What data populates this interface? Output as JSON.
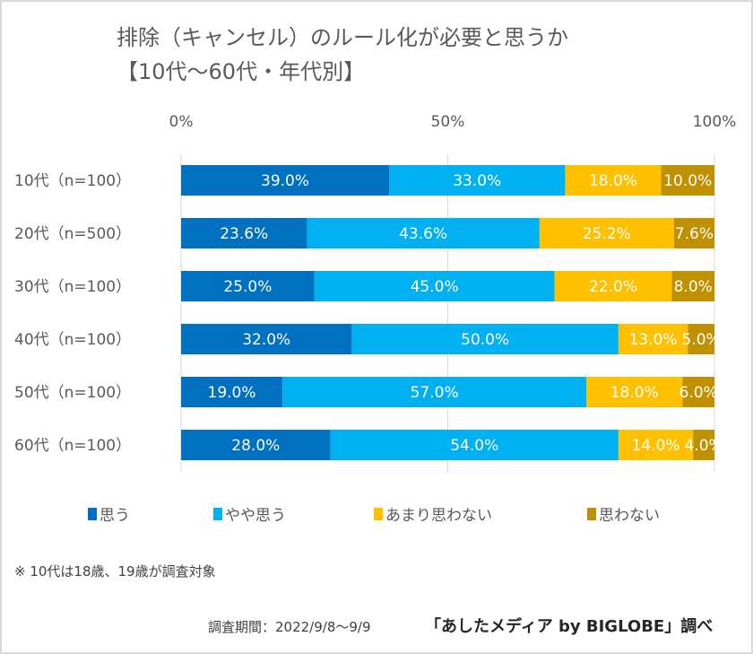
{
  "title": "排除（キャンセル）のルール化が必要と思うか",
  "subtitle": "【10代～60代・年代別】",
  "chart_data": {
    "type": "bar",
    "orientation": "horizontal",
    "stacked": "100%",
    "title": "排除（キャンセル）のルール化が必要と思うか【10代～60代・年代別】",
    "categories": [
      "10代（n=100）",
      "20代（n=500）",
      "30代（n=100）",
      "40代（n=100）",
      "50代（n=100）",
      "60代（n=100）"
    ],
    "series": [
      {
        "name": "思う",
        "color": "#0070C0",
        "values": [
          39.0,
          23.6,
          25.0,
          32.0,
          19.0,
          28.0
        ],
        "labels": [
          "39.0%",
          "23.6%",
          "25.0%",
          "32.0%",
          "19.0%",
          "28.0%"
        ]
      },
      {
        "name": "やや思う",
        "color": "#00B0F0",
        "values": [
          33.0,
          43.6,
          45.0,
          50.0,
          57.0,
          54.0
        ],
        "labels": [
          "33.0%",
          "43.6%",
          "45.0%",
          "50.0%",
          "57.0%",
          "54.0%"
        ]
      },
      {
        "name": "あまり思わない",
        "color": "#FFC000",
        "values": [
          18.0,
          25.2,
          22.0,
          13.0,
          18.0,
          14.0
        ],
        "labels": [
          "18.0%",
          "25.2%",
          "22.0%",
          "13.0%",
          "18.0%",
          "14.0%"
        ]
      },
      {
        "name": "思わない",
        "color": "#BF9000",
        "values": [
          10.0,
          7.6,
          8.0,
          5.0,
          6.0,
          4.0
        ],
        "labels": [
          "10.0%",
          "7.6%",
          "8.0%",
          "5.0%",
          "6.0%",
          "4.0%"
        ]
      }
    ],
    "xticks": [
      "0%",
      "50%",
      "100%"
    ],
    "xlim": [
      0,
      100
    ],
    "grid": true,
    "legend_position": "bottom"
  },
  "note": "※ 10代は18歳、19歳が調査対象",
  "period": "調査期間：2022/9/8～9/9",
  "source": "「あしたメディア by BIGLOBE」調べ"
}
